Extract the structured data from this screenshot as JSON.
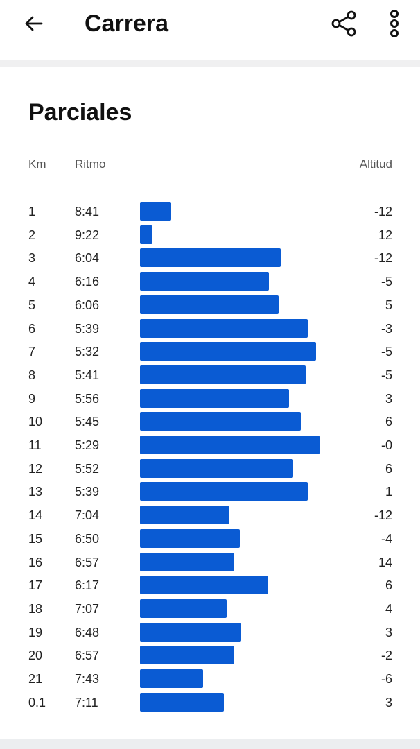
{
  "header": {
    "title": "Carrera",
    "back_icon": "arrow-left-icon",
    "share_icon": "share-icon",
    "more_icon": "more-vertical-icon"
  },
  "section": {
    "title": "Parciales",
    "col_km": "Km",
    "col_pace": "Ritmo",
    "col_alt": "Altitud"
  },
  "colors": {
    "bar": "#0a5bd3"
  },
  "splits": [
    {
      "km": "1",
      "pace": "8:41",
      "alt": "-12"
    },
    {
      "km": "2",
      "pace": "9:22",
      "alt": "12"
    },
    {
      "km": "3",
      "pace": "6:04",
      "alt": "-12"
    },
    {
      "km": "4",
      "pace": "6:16",
      "alt": "-5"
    },
    {
      "km": "5",
      "pace": "6:06",
      "alt": "5"
    },
    {
      "km": "6",
      "pace": "5:39",
      "alt": "-3"
    },
    {
      "km": "7",
      "pace": "5:32",
      "alt": "-5"
    },
    {
      "km": "8",
      "pace": "5:41",
      "alt": "-5"
    },
    {
      "km": "9",
      "pace": "5:56",
      "alt": "3"
    },
    {
      "km": "10",
      "pace": "5:45",
      "alt": "6"
    },
    {
      "km": "11",
      "pace": "5:29",
      "alt": "-0"
    },
    {
      "km": "12",
      "pace": "5:52",
      "alt": "6"
    },
    {
      "km": "13",
      "pace": "5:39",
      "alt": "1"
    },
    {
      "km": "14",
      "pace": "7:04",
      "alt": "-12"
    },
    {
      "km": "15",
      "pace": "6:50",
      "alt": "-4"
    },
    {
      "km": "16",
      "pace": "6:57",
      "alt": "14"
    },
    {
      "km": "17",
      "pace": "6:17",
      "alt": "6"
    },
    {
      "km": "18",
      "pace": "7:07",
      "alt": "4"
    },
    {
      "km": "19",
      "pace": "6:48",
      "alt": "3"
    },
    {
      "km": "20",
      "pace": "6:57",
      "alt": "-2"
    },
    {
      "km": "21",
      "pace": "7:43",
      "alt": "-6"
    },
    {
      "km": "0.1",
      "pace": "7:11",
      "alt": "3"
    }
  ]
}
